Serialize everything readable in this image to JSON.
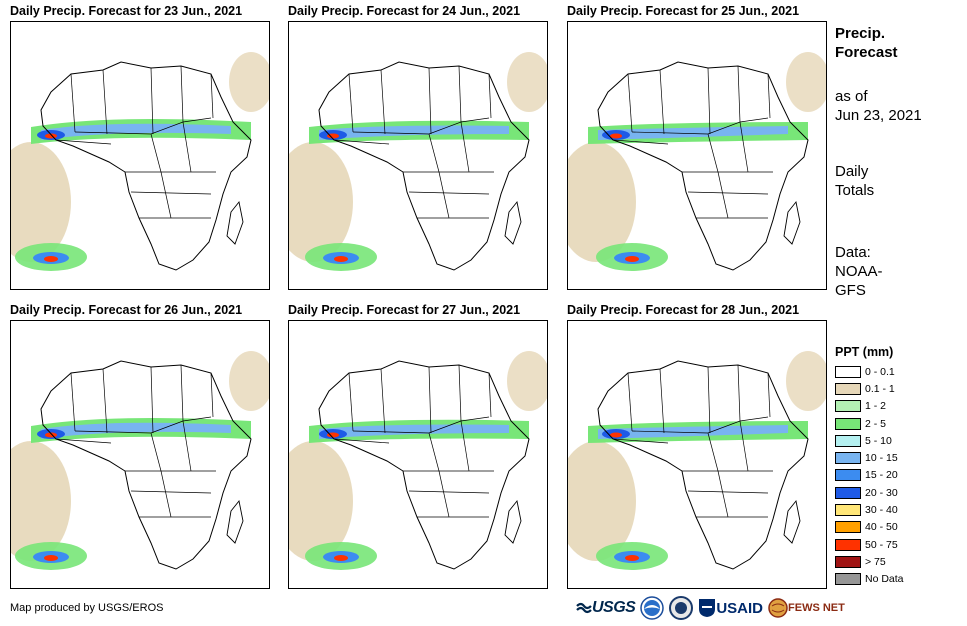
{
  "panels": [
    {
      "title": "Daily Precip. Forecast for 23 Jun., 2021"
    },
    {
      "title": "Daily Precip. Forecast for 24 Jun., 2021"
    },
    {
      "title": "Daily Precip. Forecast for 25 Jun., 2021"
    },
    {
      "title": "Daily Precip. Forecast for 26 Jun., 2021"
    },
    {
      "title": "Daily Precip. Forecast for 27 Jun., 2021"
    },
    {
      "title": "Daily Precip. Forecast for 28 Jun., 2021"
    }
  ],
  "sidebar": {
    "title_line1": "Precip.",
    "title_line2": "Forecast",
    "asof_line1": "as of",
    "asof_line2": "Jun 23, 2021",
    "daily_line1": "Daily",
    "daily_line2": "Totals",
    "data_line1": "Data:",
    "data_line2": "NOAA-",
    "data_line3": "GFS"
  },
  "legend": {
    "title": "PPT (mm)",
    "items": [
      {
        "label": "0 - 0.1",
        "color": "#ffffff"
      },
      {
        "label": "0.1 - 1",
        "color": "#e6d7b8"
      },
      {
        "label": "1 - 2",
        "color": "#b4f0b4"
      },
      {
        "label": "2 - 5",
        "color": "#78e678"
      },
      {
        "label": "5 - 10",
        "color": "#b4f0f0"
      },
      {
        "label": "10 - 15",
        "color": "#78b4f0"
      },
      {
        "label": "15 - 20",
        "color": "#3c8cf0"
      },
      {
        "label": "20 - 30",
        "color": "#1e5ae6"
      },
      {
        "label": "30 - 40",
        "color": "#ffe678"
      },
      {
        "label": "40 - 50",
        "color": "#ffa000"
      },
      {
        "label": "50 - 75",
        "color": "#ff3200"
      },
      {
        "label": "> 75",
        "color": "#a01414"
      },
      {
        "label": "No Data",
        "color": "#969696"
      }
    ]
  },
  "footer": {
    "credit": "Map produced by USGS/EROS",
    "logos": {
      "usgs": "USGS",
      "usaid": "USAID",
      "fews": "FEWS NET"
    }
  }
}
